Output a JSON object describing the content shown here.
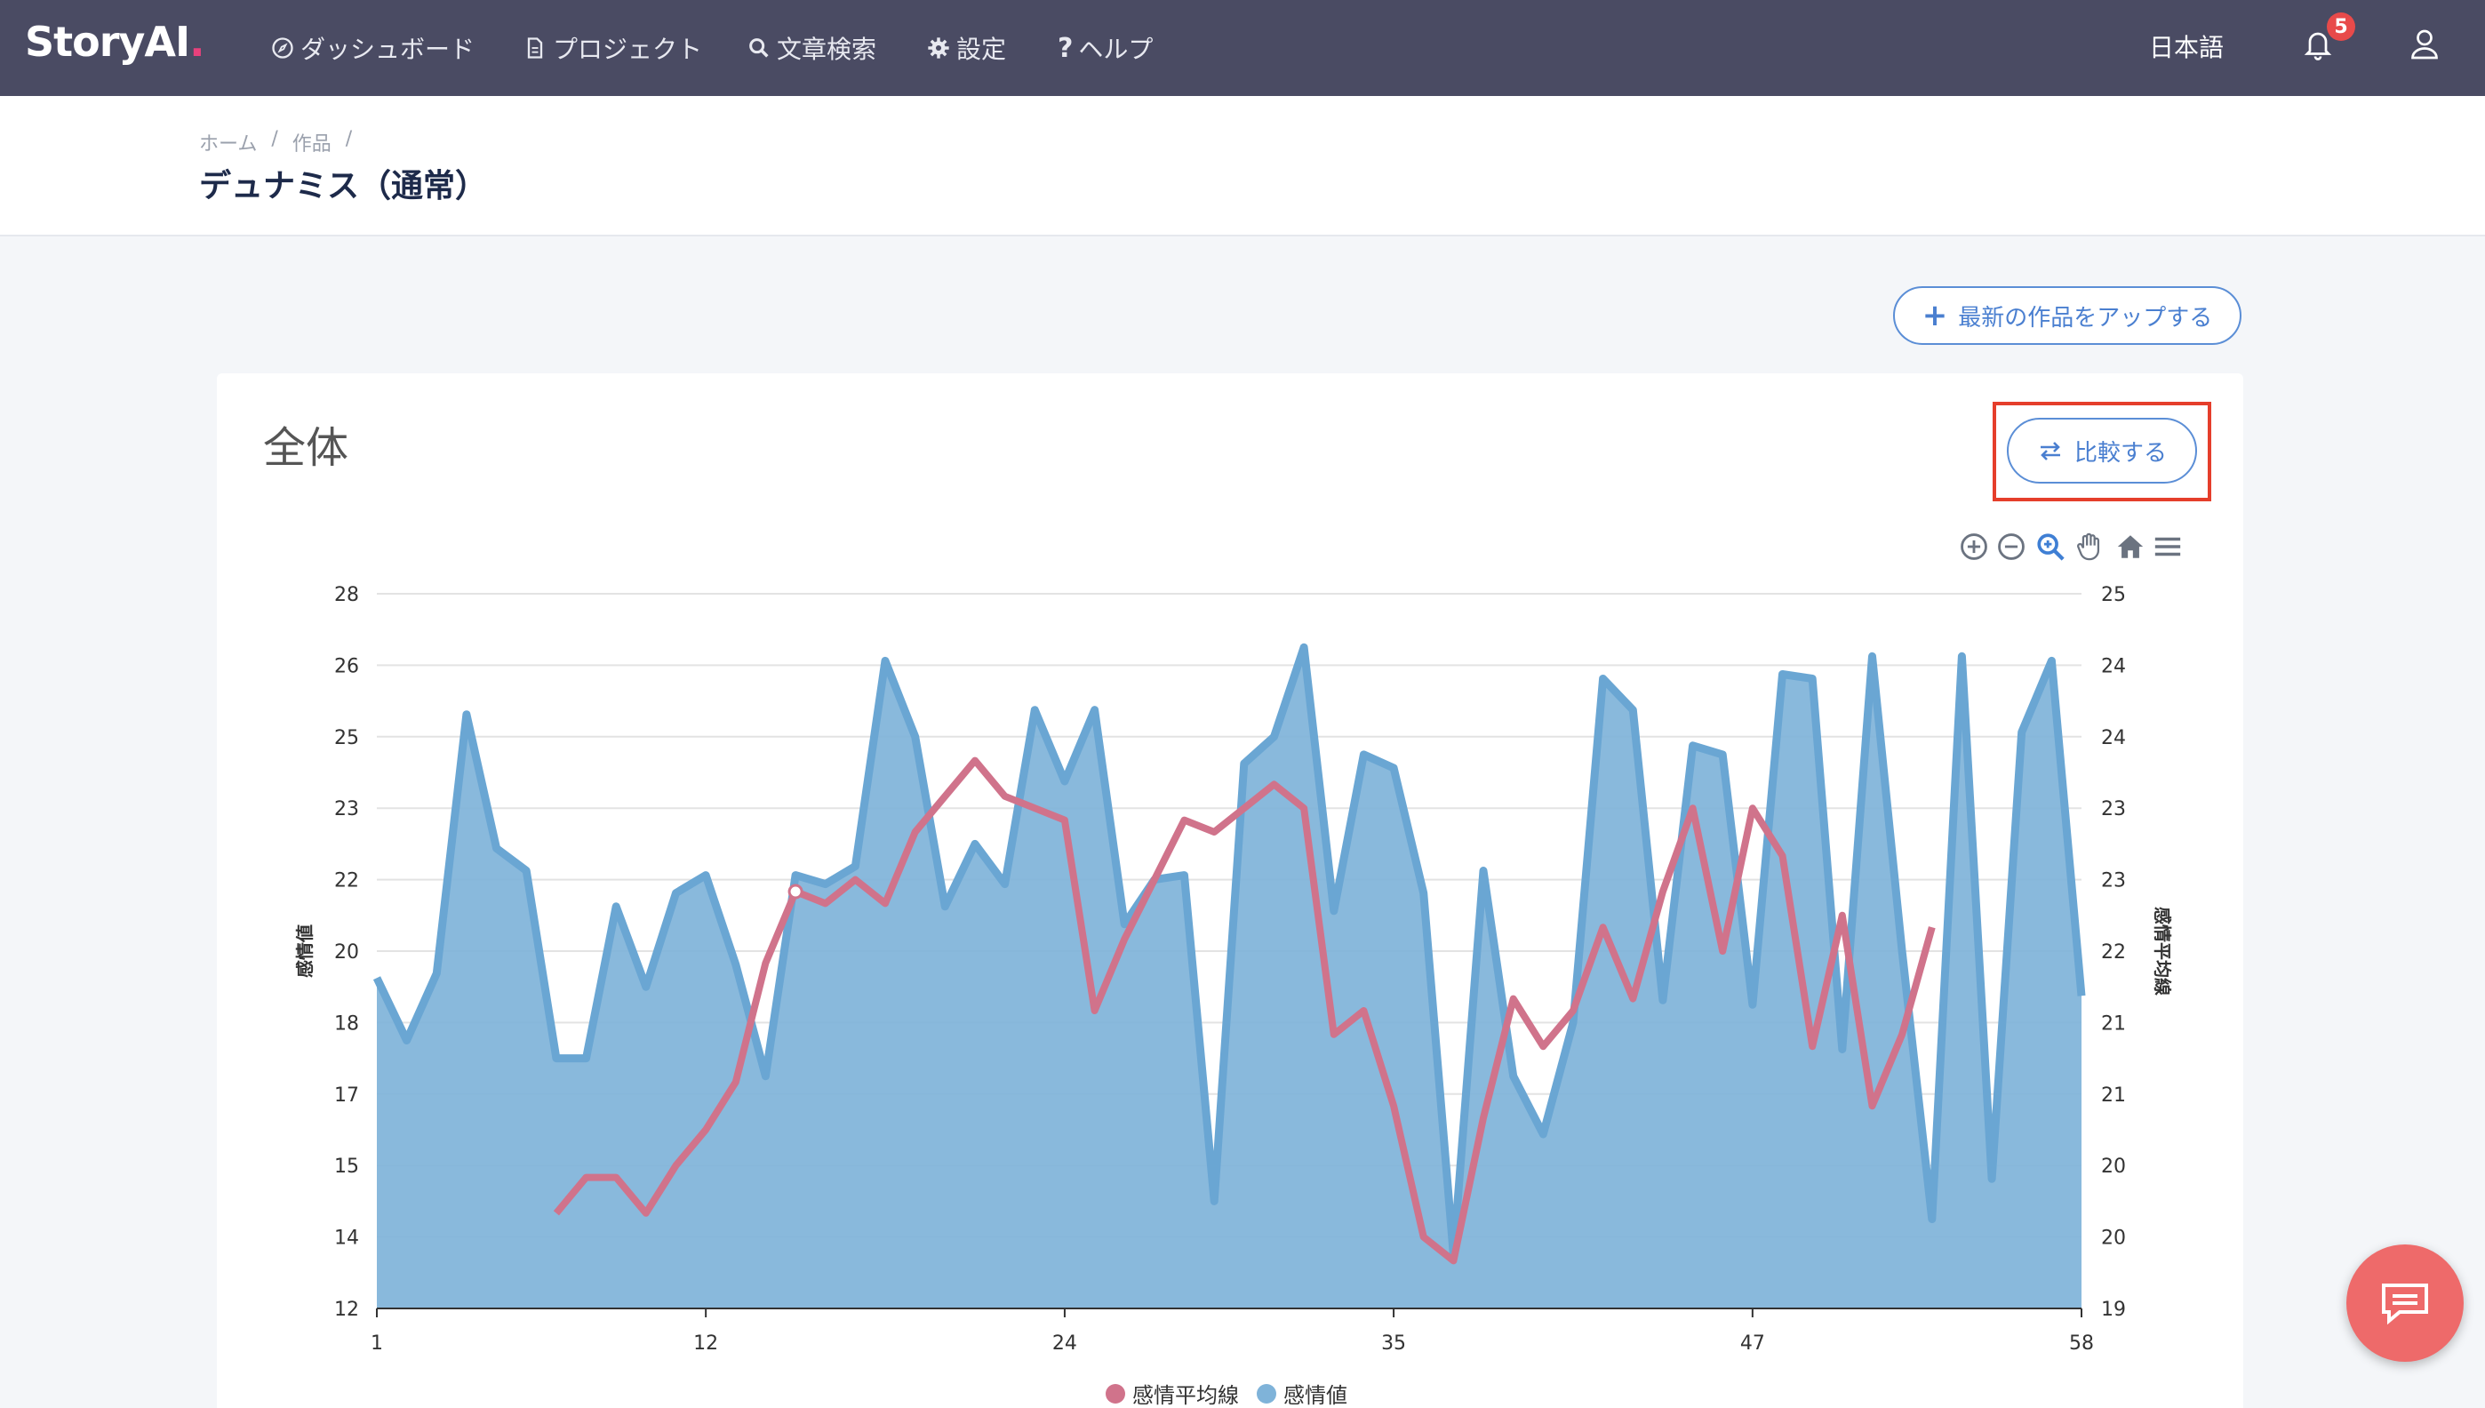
{
  "app": {
    "logo": "StoryAI",
    "logo_dot": "."
  },
  "nav": [
    {
      "label": "ダッシュボード",
      "icon": "compass-icon"
    },
    {
      "label": "プロジェクト",
      "icon": "document-icon"
    },
    {
      "label": "文章検索",
      "icon": "search-icon"
    },
    {
      "label": "設定",
      "icon": "gear-icon"
    },
    {
      "label": "ヘルプ",
      "icon": "question-icon"
    }
  ],
  "header_right": {
    "language": "日本語",
    "notification_count": "5"
  },
  "breadcrumb": [
    "ホーム",
    "/",
    "作品",
    "/"
  ],
  "page_title": "デュナミス（通常）",
  "upload_button": "最新の作品をアップする",
  "card": {
    "title": "全体",
    "compare_button": "比較する"
  },
  "colors": {
    "area": "#7fb3d9",
    "area_stroke": "#6aa6d3",
    "line": "#d0738b",
    "accent": "#4a7fd0",
    "highlight": "#e53e2b"
  },
  "chart_data": {
    "type": "area",
    "ylabel": "感情値",
    "y2label": "感情平均線",
    "y_ticks": [
      "28",
      "26",
      "25",
      "23",
      "22",
      "20",
      "18",
      "17",
      "15",
      "14",
      "12"
    ],
    "y2_ticks": [
      "25",
      "24",
      "24",
      "23",
      "23",
      "22",
      "21",
      "21",
      "20",
      "20",
      "19"
    ],
    "x_ticks": [
      "1",
      "12",
      "24",
      "35",
      "47",
      "58"
    ],
    "x": [
      1,
      2,
      3,
      4,
      5,
      6,
      7,
      8,
      9,
      10,
      11,
      12,
      13,
      14,
      15,
      16,
      17,
      18,
      19,
      20,
      21,
      22,
      23,
      24,
      25,
      26,
      27,
      28,
      29,
      30,
      31,
      32,
      33,
      34,
      35,
      36,
      37,
      38,
      39,
      40,
      41,
      42,
      43,
      44,
      45,
      46,
      47,
      48,
      49,
      50,
      51,
      52,
      53,
      54,
      55,
      56,
      57,
      58
    ],
    "series": [
      {
        "name": "感情値",
        "type": "area",
        "axis": "left",
        "values": [
          19.4,
          18.0,
          19.5,
          25.3,
          22.3,
          21.8,
          17.6,
          17.6,
          21.0,
          19.2,
          21.3,
          21.7,
          19.7,
          17.2,
          21.7,
          21.5,
          21.9,
          26.5,
          24.8,
          21.0,
          22.4,
          21.5,
          25.4,
          23.8,
          25.4,
          20.6,
          21.6,
          21.7,
          14.4,
          24.2,
          24.8,
          26.8,
          20.9,
          24.4,
          24.1,
          21.3,
          13.2,
          21.8,
          17.2,
          15.9,
          18.4,
          26.1,
          25.4,
          18.9,
          24.6,
          24.4,
          18.8,
          26.2,
          26.1,
          17.8,
          26.6,
          20.0,
          14.0,
          26.6,
          14.9,
          24.9,
          26.5,
          19.0
        ],
        "color": "#7fb3d9"
      },
      {
        "name": "感情平均線",
        "type": "line",
        "axis": "right",
        "values": [
          null,
          null,
          null,
          null,
          null,
          null,
          19.8,
          20.1,
          20.1,
          19.8,
          20.2,
          20.5,
          20.9,
          21.9,
          22.5,
          22.4,
          22.6,
          22.4,
          23.0,
          23.3,
          23.6,
          23.3,
          23.2,
          23.1,
          21.5,
          22.1,
          22.6,
          23.1,
          23.0,
          23.2,
          23.4,
          23.2,
          21.3,
          21.5,
          20.7,
          19.6,
          19.4,
          20.6,
          21.6,
          21.2,
          21.5,
          22.2,
          21.6,
          22.5,
          23.2,
          22.0,
          23.2,
          22.8,
          21.2,
          22.3,
          20.7,
          21.3,
          22.2,
          null,
          null,
          null,
          null,
          null
        ],
        "color": "#d0738b"
      }
    ],
    "legend": [
      "感情平均線",
      "感情値"
    ],
    "legend_position": "bottom",
    "grid": true
  },
  "toolbar_icons": [
    "zoom-in-icon",
    "zoom-out-icon",
    "magnify-icon",
    "pan-hand-icon",
    "home-icon",
    "menu-icon"
  ]
}
